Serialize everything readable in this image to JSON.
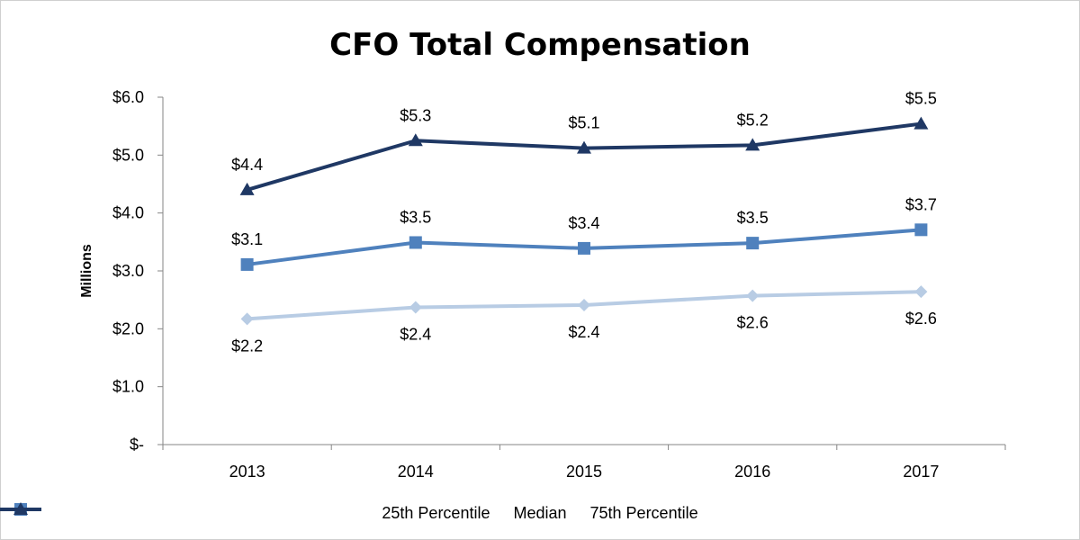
{
  "chart_data": {
    "type": "line",
    "title": "CFO Total Compensation",
    "ylabel": "Millions",
    "xlabel": "",
    "categories": [
      "2013",
      "2014",
      "2015",
      "2016",
      "2017"
    ],
    "ylim": [
      0,
      6
    ],
    "yticks": [
      0,
      1,
      2,
      3,
      4,
      5,
      6
    ],
    "ytick_labels": [
      "$-",
      "$1.0",
      "$2.0",
      "$3.0",
      "$4.0",
      "$5.0",
      "$6.0"
    ],
    "grid": false,
    "legend_position": "bottom",
    "series": [
      {
        "name": "25th Percentile",
        "values": [
          2.17,
          2.37,
          2.41,
          2.57,
          2.64
        ],
        "data_labels": [
          "$2.2",
          "$2.4",
          "$2.4",
          "$2.6",
          "$2.6"
        ],
        "label_position": "below",
        "marker": "diamond",
        "color": "#b8cce4"
      },
      {
        "name": "Median",
        "values": [
          3.11,
          3.49,
          3.39,
          3.48,
          3.71
        ],
        "data_labels": [
          "$3.1",
          "$3.5",
          "$3.4",
          "$3.5",
          "$3.7"
        ],
        "label_position": "above",
        "marker": "square",
        "color": "#4f81bd"
      },
      {
        "name": "75th Percentile",
        "values": [
          4.4,
          5.25,
          5.12,
          5.17,
          5.54
        ],
        "data_labels": [
          "$4.4",
          "$5.3",
          "$5.1",
          "$5.2",
          "$5.5"
        ],
        "label_position": "above",
        "marker": "triangle",
        "color": "#1f3864"
      }
    ]
  }
}
